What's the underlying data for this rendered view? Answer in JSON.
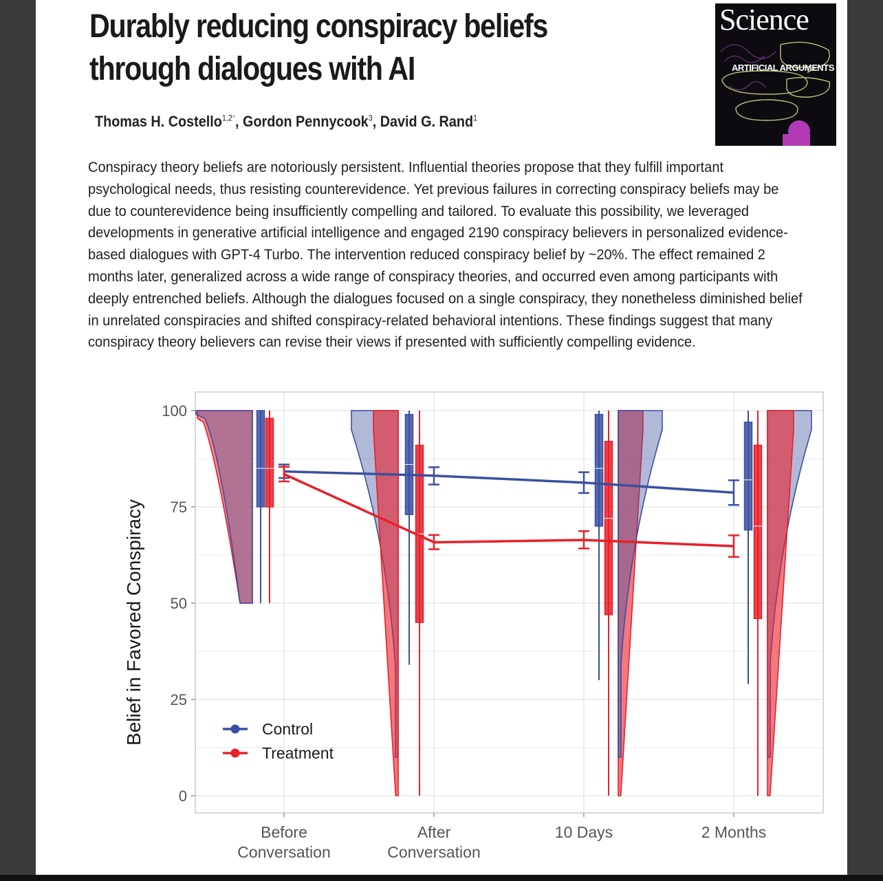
{
  "paper": {
    "title": "Durably reducing conspiracy beliefs through dialogues with AI",
    "authors": [
      {
        "name": "Thomas H. Costello",
        "affil": "1,2",
        "mark": "*"
      },
      {
        "name": "Gordon Pennycook",
        "affil": "3",
        "mark": ""
      },
      {
        "name": "David G. Rand",
        "affil": "1",
        "mark": ""
      }
    ],
    "abstract": "Conspiracy theory beliefs are notoriously persistent. Influential theories propose that they fulfill important psychological needs, thus resisting counterevidence. Yet previous failures in correcting conspiracy beliefs may be due to counterevidence being insufficiently compelling and tailored. To evaluate this possibility, we leveraged developments in generative artificial intelligence and engaged 2190 conspiracy believers in personalized evidence-based dialogues with GPT-4 Turbo. The intervention reduced conspiracy belief by ~20%. The effect remained 2 months later, generalized across a wide range of conspiracy theories, and occurred even among participants with deeply entrenched beliefs. Although the dialogues focused on a single conspiracy, they nonetheless diminished belief in unrelated conspiracies and shifted conspiracy-related behavioral intentions. These findings suggest that many conspiracy theory believers can revise their views if presented with sufficiently compelling evidence."
  },
  "journal_cover": {
    "masthead": "Science",
    "cover_line": "ARTIFICIAL ARGUMENTS"
  },
  "colors": {
    "control": "#3b4fa0",
    "treatment": "#e8202a",
    "grid": "#e3e3e3",
    "panel_border": "#bfbfbf"
  },
  "chart_data": {
    "type": "line",
    "ylabel": "Belief in Favored Conspiracy",
    "xlabel": "",
    "ylim": [
      0,
      100
    ],
    "yticks": [
      0,
      25,
      50,
      75,
      100
    ],
    "categories": [
      "Before\nConversation",
      "After\nConversation",
      "10 Days",
      "2 Months"
    ],
    "legend_position": "bottom-left",
    "grid": true,
    "series": [
      {
        "name": "Control",
        "color": "#3b4fa0",
        "values": [
          84.2,
          83.1,
          81.3,
          78.7
        ],
        "ci": [
          [
            82.5,
            86.0
          ],
          [
            80.8,
            85.3
          ],
          [
            78.6,
            84.0
          ],
          [
            75.5,
            81.9
          ]
        ]
      },
      {
        "name": "Treatment",
        "color": "#e8202a",
        "values": [
          83.5,
          65.8,
          66.4,
          64.8
        ],
        "ci": [
          [
            81.6,
            85.4
          ],
          [
            64.0,
            67.7
          ],
          [
            64.2,
            68.7
          ],
          [
            62.0,
            67.6
          ]
        ]
      }
    ],
    "distributions": [
      {
        "series": "Control",
        "time": 0,
        "box": [
          75,
          85,
          100
        ],
        "whisker": [
          50,
          100
        ]
      },
      {
        "series": "Treatment",
        "time": 0,
        "box": [
          75,
          85,
          98
        ],
        "whisker": [
          50,
          100
        ]
      },
      {
        "series": "Control",
        "time": 1,
        "box": [
          73,
          86,
          99
        ],
        "whisker": [
          34,
          100
        ]
      },
      {
        "series": "Treatment",
        "time": 1,
        "box": [
          45,
          68,
          91
        ],
        "whisker": [
          0,
          100
        ]
      },
      {
        "series": "Control",
        "time": 2,
        "box": [
          70,
          85,
          99
        ],
        "whisker": [
          30,
          100
        ]
      },
      {
        "series": "Treatment",
        "time": 2,
        "box": [
          47,
          72,
          92
        ],
        "whisker": [
          0,
          100
        ]
      },
      {
        "series": "Control",
        "time": 3,
        "box": [
          69,
          82,
          97
        ],
        "whisker": [
          29,
          100
        ]
      },
      {
        "series": "Treatment",
        "time": 3,
        "box": [
          46,
          70,
          91
        ],
        "whisker": [
          0,
          100
        ]
      }
    ]
  }
}
